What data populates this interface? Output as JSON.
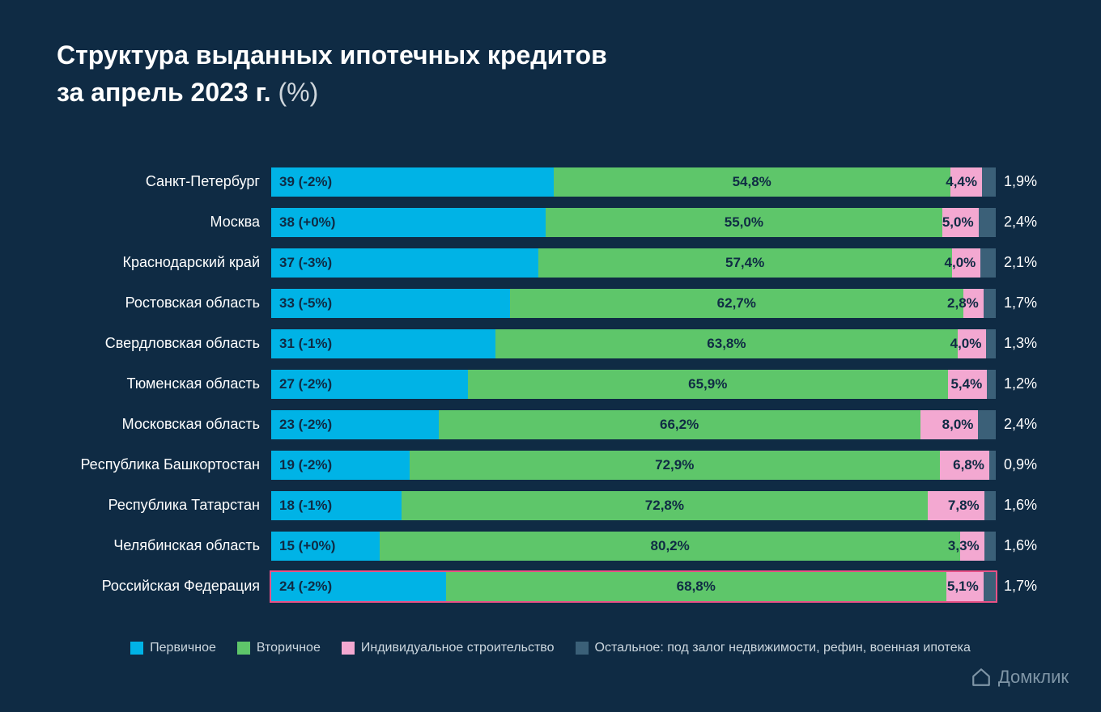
{
  "title_line1": "Структура выданных ипотечных кредитов",
  "title_line2": "за апрель 2023 г.",
  "title_unit": "(%)",
  "colors": {
    "background": "#0f2b44",
    "primary": "#00b3e6",
    "secondary": "#5ec66a",
    "individual": "#f3a8d1",
    "other": "#3b6078",
    "highlight_border": "#e85186",
    "text_light": "#ffffff",
    "text_muted": "#cbd6de",
    "logo": "#7f95a6"
  },
  "legend": {
    "primary": "Первичное",
    "secondary": "Вторичное",
    "individual": "Индивидуальное строительство",
    "other": "Остальное: под залог недвижимости, рефин, военная ипотека"
  },
  "rows": [
    {
      "label": "Санкт-Петербург",
      "primary": 39,
      "primary_delta": "-2%",
      "secondary": 54.8,
      "individual": 4.4,
      "other": 1.9,
      "highlight": false
    },
    {
      "label": "Москва",
      "primary": 38,
      "primary_delta": "+0%",
      "secondary": 55.0,
      "individual": 5.0,
      "other": 2.4,
      "highlight": false
    },
    {
      "label": "Краснодарский край",
      "primary": 37,
      "primary_delta": "-3%",
      "secondary": 57.4,
      "individual": 4.0,
      "other": 2.1,
      "highlight": false
    },
    {
      "label": "Ростовская область",
      "primary": 33,
      "primary_delta": "-5%",
      "secondary": 62.7,
      "individual": 2.8,
      "other": 1.7,
      "highlight": false
    },
    {
      "label": "Свердловская область",
      "primary": 31,
      "primary_delta": "-1%",
      "secondary": 63.8,
      "individual": 4.0,
      "other": 1.3,
      "highlight": false
    },
    {
      "label": "Тюменская область",
      "primary": 27,
      "primary_delta": "-2%",
      "secondary": 65.9,
      "individual": 5.4,
      "other": 1.2,
      "highlight": false
    },
    {
      "label": "Московская область",
      "primary": 23,
      "primary_delta": "-2%",
      "secondary": 66.2,
      "individual": 8.0,
      "other": 2.4,
      "highlight": false
    },
    {
      "label": "Республика Башкортостан",
      "primary": 19,
      "primary_delta": "-2%",
      "secondary": 72.9,
      "individual": 6.8,
      "other": 0.9,
      "highlight": false
    },
    {
      "label": "Республика Татарстан",
      "primary": 18,
      "primary_delta": "-1%",
      "secondary": 72.8,
      "individual": 7.8,
      "other": 1.6,
      "highlight": false
    },
    {
      "label": "Челябинская область",
      "primary": 15,
      "primary_delta": "+0%",
      "secondary": 80.2,
      "individual": 3.3,
      "other": 1.6,
      "highlight": false
    },
    {
      "label": "Российская Федерация",
      "primary": 24,
      "primary_delta": "-2%",
      "secondary": 68.8,
      "individual": 5.1,
      "other": 1.7,
      "highlight": true
    }
  ],
  "logo_text": "Домклик"
}
